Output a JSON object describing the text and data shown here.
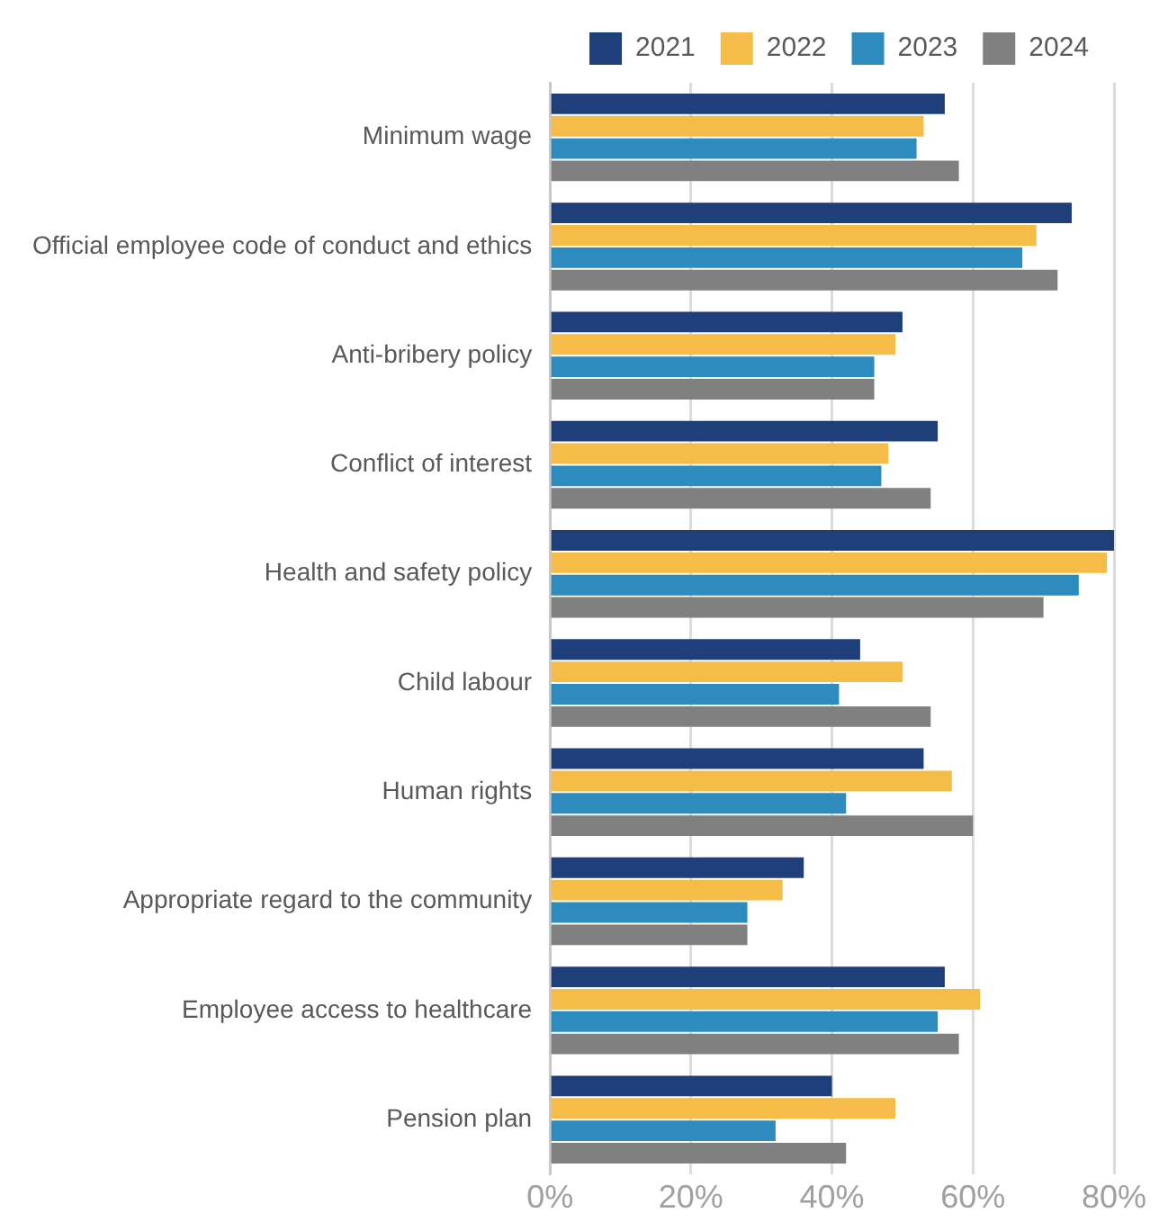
{
  "chart_data": {
    "type": "bar",
    "orientation": "horizontal",
    "categories": [
      "Minimum wage",
      "Official employee code of conduct and ethics",
      "Anti-bribery policy",
      "Conflict of interest",
      "Health and safety policy",
      "Child labour",
      "Human rights",
      "Appropriate regard to the community",
      "Employee access to healthcare",
      "Pension plan"
    ],
    "series": [
      {
        "name": "2021",
        "color": "#1f3f7a",
        "values": [
          56,
          74,
          50,
          55,
          80,
          44,
          53,
          36,
          56,
          40
        ]
      },
      {
        "name": "2022",
        "color": "#f5bd47",
        "values": [
          53,
          69,
          49,
          48,
          79,
          50,
          57,
          33,
          61,
          49
        ]
      },
      {
        "name": "2023",
        "color": "#2e8bbd",
        "values": [
          52,
          67,
          46,
          47,
          75,
          41,
          42,
          28,
          55,
          32
        ]
      },
      {
        "name": "2024",
        "color": "#808080",
        "values": [
          58,
          72,
          46,
          54,
          70,
          54,
          60,
          28,
          58,
          42
        ]
      }
    ],
    "xlim": [
      0,
      80
    ],
    "xticks": [
      {
        "value": 0,
        "label": "0%"
      },
      {
        "value": 20,
        "label": "20%"
      },
      {
        "value": 40,
        "label": "40%"
      },
      {
        "value": 60,
        "label": "60%"
      },
      {
        "value": 80,
        "label": "80%"
      }
    ],
    "grid": "x",
    "legend": "top right"
  }
}
